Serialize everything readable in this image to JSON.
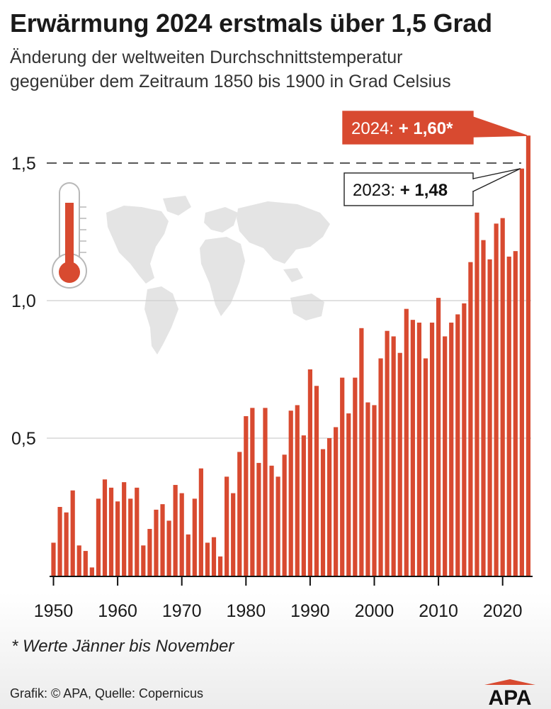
{
  "header": {
    "title": "Erwärmung 2024 erstmals über 1,5 Grad",
    "subtitle_line1": "Änderung der weltweiten Durchschnittstemperatur",
    "subtitle_line2": "gegenüber dem Zeitraum 1850 bis 1900 in Grad Celsius"
  },
  "chart_data": {
    "type": "bar",
    "title": "Erwärmung 2024 erstmals über 1,5 Grad",
    "subtitle": "Änderung der weltweiten Durchschnittstemperatur gegenüber dem Zeitraum 1850 bis 1900 in Grad Celsius",
    "x_start": 1950,
    "x": [
      1950,
      1951,
      1952,
      1953,
      1954,
      1955,
      1956,
      1957,
      1958,
      1959,
      1960,
      1961,
      1962,
      1963,
      1964,
      1965,
      1966,
      1967,
      1968,
      1969,
      1970,
      1971,
      1972,
      1973,
      1974,
      1975,
      1976,
      1977,
      1978,
      1979,
      1980,
      1981,
      1982,
      1983,
      1984,
      1985,
      1986,
      1987,
      1988,
      1989,
      1990,
      1991,
      1992,
      1993,
      1994,
      1995,
      1996,
      1997,
      1998,
      1999,
      2000,
      2001,
      2002,
      2003,
      2004,
      2005,
      2006,
      2007,
      2008,
      2009,
      2010,
      2011,
      2012,
      2013,
      2014,
      2015,
      2016,
      2017,
      2018,
      2019,
      2020,
      2021,
      2022,
      2023,
      2024
    ],
    "values": [
      0.12,
      0.25,
      0.23,
      0.31,
      0.11,
      0.09,
      0.03,
      0.28,
      0.35,
      0.32,
      0.27,
      0.34,
      0.28,
      0.32,
      0.11,
      0.17,
      0.24,
      0.26,
      0.2,
      0.33,
      0.3,
      0.15,
      0.28,
      0.39,
      0.12,
      0.14,
      0.07,
      0.36,
      0.3,
      0.45,
      0.58,
      0.61,
      0.41,
      0.61,
      0.4,
      0.36,
      0.44,
      0.6,
      0.62,
      0.51,
      0.75,
      0.69,
      0.46,
      0.5,
      0.54,
      0.72,
      0.59,
      0.72,
      0.9,
      0.63,
      0.62,
      0.79,
      0.89,
      0.87,
      0.81,
      0.97,
      0.93,
      0.92,
      0.79,
      0.92,
      1.01,
      0.87,
      0.92,
      0.95,
      0.99,
      1.14,
      1.32,
      1.22,
      1.15,
      1.28,
      1.3,
      1.16,
      1.18,
      1.48,
      1.6
    ],
    "ylim": [
      0,
      1.6
    ],
    "y_ticks": [
      {
        "value": 0.5,
        "label": "0,5"
      },
      {
        "value": 1.0,
        "label": "1,0"
      },
      {
        "value": 1.5,
        "label": "1,5"
      }
    ],
    "x_ticks": [
      {
        "value": 1950,
        "label": "1950"
      },
      {
        "value": 1960,
        "label": "1960"
      },
      {
        "value": 1970,
        "label": "1970"
      },
      {
        "value": 1980,
        "label": "1980"
      },
      {
        "value": 1990,
        "label": "1990"
      },
      {
        "value": 2000,
        "label": "2000"
      },
      {
        "value": 2010,
        "label": "2010"
      },
      {
        "value": 2020,
        "label": "2020"
      }
    ],
    "threshold": 1.5,
    "grid": true,
    "annotations": [
      {
        "year": 2024,
        "prefix": "2024: ",
        "value_text": "+ 1,60*",
        "style": "filled"
      },
      {
        "year": 2023,
        "prefix": "2023: ",
        "value_text": "+ 1,48",
        "style": "outlined"
      }
    ]
  },
  "colors": {
    "bar": "#d84a30",
    "grid": "#cfcfcf",
    "map": "#e4e4e4",
    "text": "#1a1a1a"
  },
  "icons": {
    "thermometer": "thermometer-icon",
    "map": "world-map-icon"
  },
  "footer": {
    "footnote": "* Werte Jänner bis November",
    "credit": "Grafik: © APA, Quelle: Copernicus",
    "logo_text": "APA"
  }
}
